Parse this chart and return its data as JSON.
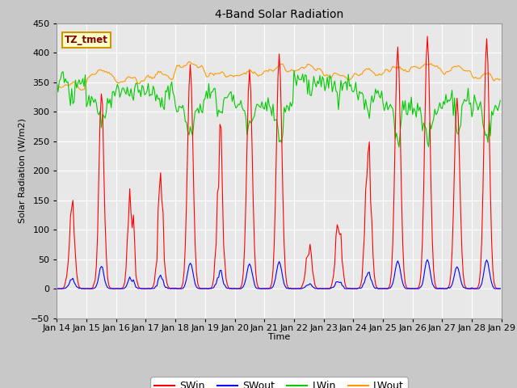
{
  "title": "4-Band Solar Radiation",
  "ylabel": "Solar Radiation (W/m2)",
  "xlabel": "Time",
  "annotation": "TZ_tmet",
  "ylim": [
    -50,
    450
  ],
  "xlim": [
    0,
    360
  ],
  "x_tick_labels": [
    "Jan 14",
    "Jan 15",
    "Jan 16",
    "Jan 17",
    "Jan 18",
    "Jan 19",
    "Jan 20",
    "Jan 21",
    "Jan 22",
    "Jan 23",
    "Jan 24",
    "Jan 25",
    "Jan 26",
    "Jan 27",
    "Jan 28",
    "Jan 29"
  ],
  "yticks": [
    -50,
    0,
    50,
    100,
    150,
    200,
    250,
    300,
    350,
    400,
    450
  ],
  "colors": {
    "SWin": "#ff0000",
    "SWout": "#0000ff",
    "LWin": "#00cc00",
    "LWout": "#ff9900"
  },
  "fig_bg": "#c8c8c8",
  "ax_bg": "#e8e8e8",
  "title_fontsize": 10,
  "label_fontsize": 8,
  "tick_fontsize": 8,
  "line_width": 0.8
}
